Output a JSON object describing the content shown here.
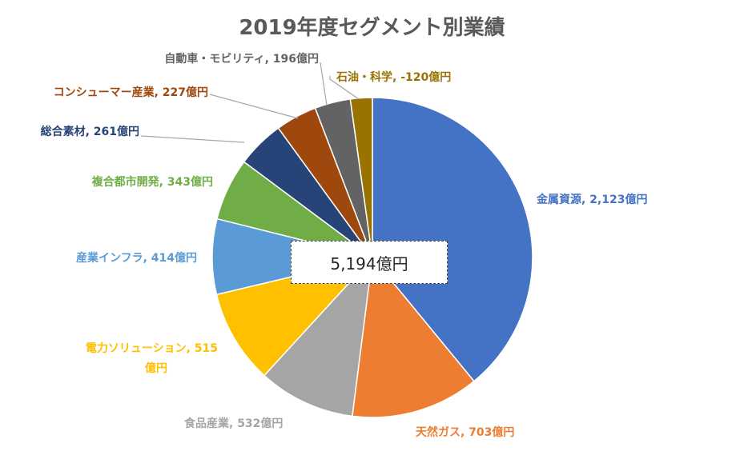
{
  "chart_data": {
    "type": "pie",
    "title": "2019年度セグメント別業績",
    "total_label": "5,194億円",
    "slices": [
      {
        "name": "金属資源",
        "value": 2123,
        "label": "金属資源, 2,123億円",
        "color": "#4472C4"
      },
      {
        "name": "天然ガス",
        "value": 703,
        "label": "天然ガス, 703億円",
        "color": "#ED7D31"
      },
      {
        "name": "食品産業",
        "value": 532,
        "label": "食品産業, 532億円",
        "color": "#A5A5A5"
      },
      {
        "name": "電力ソリューション",
        "value": 515,
        "label": "電力ソリューション, 515",
        "label2": "億円",
        "color": "#FFC000"
      },
      {
        "name": "産業インフラ",
        "value": 414,
        "label": "産業インフラ, 414億円",
        "color": "#5B9BD5"
      },
      {
        "name": "複合都市開発",
        "value": 343,
        "label": "複合都市開発, 343億円",
        "color": "#70AD47"
      },
      {
        "name": "総合素材",
        "value": 261,
        "label": "総合素材, 261億円",
        "color": "#264478"
      },
      {
        "name": "コンシューマー産業",
        "value": 227,
        "label": "コンシューマー産業, 227億円",
        "color": "#9E480E"
      },
      {
        "name": "自動車・モビリティ",
        "value": 196,
        "label": "自動車・モビリティ, 196億円",
        "color": "#636363"
      },
      {
        "name": "石油・科学",
        "value": -120,
        "label": "石油・科学, -120億円",
        "color": "#997300"
      }
    ]
  }
}
